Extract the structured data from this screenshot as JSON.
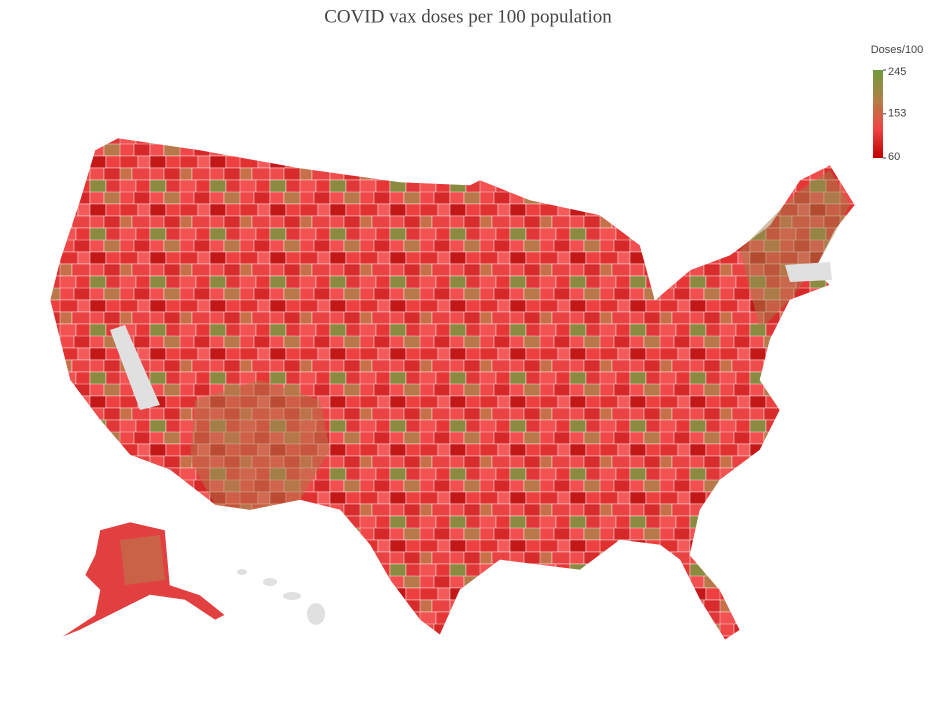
{
  "title": "COVID vax doses per 100 population",
  "colorbar": {
    "title": "Doses/100",
    "range": [
      60,
      245
    ],
    "ticks": [
      60,
      153,
      245
    ],
    "colors": [
      "#c00000",
      "#f04444",
      "#b08048",
      "#6e9a3c"
    ]
  }
}
